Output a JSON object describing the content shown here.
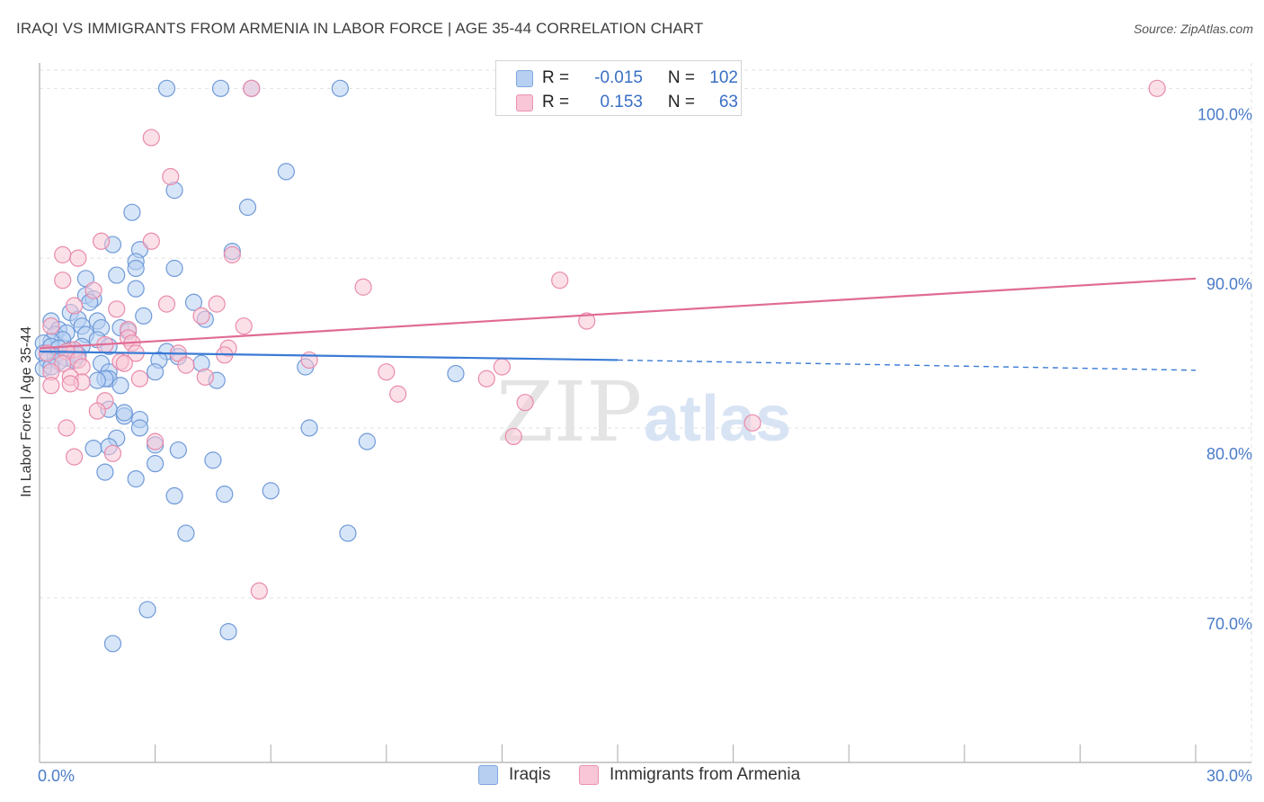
{
  "header": {
    "title": "IRAQI VS IMMIGRANTS FROM ARMENIA IN LABOR FORCE | AGE 35-44 CORRELATION CHART",
    "source": "Source: ZipAtlas.com"
  },
  "legend": {
    "r_label": "R =",
    "n_label": "N =",
    "rows": [
      {
        "r": "-0.015",
        "n": "102"
      },
      {
        "r": "0.153",
        "n": "63"
      }
    ]
  },
  "watermark": {
    "zip": "ZIP",
    "atlas": "atlas"
  },
  "colors": {
    "blue_fill": "#b7d0f2",
    "blue_stroke": "#6f9ad8",
    "blue_line": "#3a7bd5",
    "pink_fill": "#f8c6d6",
    "pink_stroke": "#e98bab",
    "pink_line": "#e06b96",
    "axis_label": "#4a7cc9",
    "grid": "#e2e2e2"
  },
  "chart_data": {
    "type": "scatter",
    "title": "IRAQI VS IMMIGRANTS FROM ARMENIA IN LABOR FORCE | AGE 35-44 CORRELATION CHART",
    "xlabel": "",
    "ylabel": "In Labor Force | Age 35-44",
    "xlim": [
      0,
      30
    ],
    "ylim": [
      60.3,
      101.5
    ],
    "x_tick_labels": [
      "0.0%",
      "30.0%"
    ],
    "y_ticks": [
      {
        "value": 70,
        "label": "70.0%"
      },
      {
        "value": 80,
        "label": "80.0%"
      },
      {
        "value": 90,
        "label": "90.0%"
      },
      {
        "value": 100,
        "label": "100.0%"
      }
    ],
    "grid": true,
    "legend_position": "top-center",
    "series": [
      {
        "name": "Iraqis",
        "color": "#6f9ad8",
        "R": -0.015,
        "N": 102,
        "trend": {
          "x_start": 0,
          "y_start": 84.5,
          "x_solid_end": 15,
          "y_solid_end": 84.0,
          "x_end": 30,
          "y_end": 83.4
        },
        "points": [
          [
            3.3,
            100.0
          ],
          [
            4.7,
            100.0
          ],
          [
            5.5,
            100.0
          ],
          [
            7.8,
            100.0
          ],
          [
            6.4,
            95.1
          ],
          [
            3.5,
            94.0
          ],
          [
            5.4,
            93.0
          ],
          [
            2.4,
            92.7
          ],
          [
            1.9,
            90.8
          ],
          [
            2.6,
            90.5
          ],
          [
            5.0,
            90.4
          ],
          [
            2.5,
            89.8
          ],
          [
            2.5,
            89.4
          ],
          [
            3.5,
            89.4
          ],
          [
            2.0,
            89.0
          ],
          [
            1.2,
            88.8
          ],
          [
            2.5,
            88.2
          ],
          [
            1.2,
            87.8
          ],
          [
            1.4,
            87.6
          ],
          [
            1.3,
            87.4
          ],
          [
            4.0,
            87.4
          ],
          [
            0.8,
            86.8
          ],
          [
            1.0,
            86.4
          ],
          [
            1.5,
            86.3
          ],
          [
            4.3,
            86.4
          ],
          [
            0.3,
            86.3
          ],
          [
            2.7,
            86.6
          ],
          [
            1.1,
            86.0
          ],
          [
            1.6,
            85.9
          ],
          [
            0.5,
            85.8
          ],
          [
            0.4,
            85.5
          ],
          [
            1.2,
            85.5
          ],
          [
            0.7,
            85.6
          ],
          [
            2.1,
            85.9
          ],
          [
            2.3,
            85.7
          ],
          [
            1.5,
            85.2
          ],
          [
            0.6,
            85.2
          ],
          [
            0.3,
            85.1
          ],
          [
            0.1,
            85.0
          ],
          [
            0.3,
            84.8
          ],
          [
            0.5,
            84.7
          ],
          [
            0.8,
            84.6
          ],
          [
            1.1,
            84.8
          ],
          [
            1.8,
            84.8
          ],
          [
            3.3,
            84.5
          ],
          [
            0.1,
            84.4
          ],
          [
            0.4,
            84.2
          ],
          [
            0.7,
            84.1
          ],
          [
            1.0,
            84.3
          ],
          [
            3.6,
            84.2
          ],
          [
            0.2,
            84.0
          ],
          [
            0.5,
            83.9
          ],
          [
            0.9,
            84.0
          ],
          [
            3.1,
            84.0
          ],
          [
            4.2,
            83.8
          ],
          [
            1.6,
            83.8
          ],
          [
            0.1,
            83.5
          ],
          [
            0.3,
            83.6
          ],
          [
            1.8,
            83.3
          ],
          [
            3.0,
            83.3
          ],
          [
            6.9,
            83.6
          ],
          [
            10.8,
            83.2
          ],
          [
            1.8,
            82.9
          ],
          [
            1.7,
            82.9
          ],
          [
            1.5,
            82.8
          ],
          [
            4.6,
            82.8
          ],
          [
            2.1,
            82.5
          ],
          [
            1.8,
            81.1
          ],
          [
            2.2,
            80.7
          ],
          [
            2.2,
            80.9
          ],
          [
            2.6,
            80.5
          ],
          [
            2.6,
            80.0
          ],
          [
            7.0,
            80.0
          ],
          [
            8.5,
            79.2
          ],
          [
            2.0,
            79.4
          ],
          [
            1.4,
            78.8
          ],
          [
            1.8,
            78.9
          ],
          [
            3.0,
            79.0
          ],
          [
            3.6,
            78.7
          ],
          [
            4.5,
            78.1
          ],
          [
            3.0,
            77.9
          ],
          [
            1.7,
            77.4
          ],
          [
            2.5,
            77.0
          ],
          [
            6.0,
            76.3
          ],
          [
            3.5,
            76.0
          ],
          [
            4.8,
            76.1
          ],
          [
            3.8,
            73.8
          ],
          [
            8.0,
            73.8
          ],
          [
            2.8,
            69.3
          ],
          [
            4.9,
            68.0
          ],
          [
            1.9,
            67.3
          ]
        ]
      },
      {
        "name": "Immigrants from Armenia",
        "color": "#e98bab",
        "R": 0.153,
        "N": 63,
        "trend": {
          "x_start": 0,
          "y_start": 84.7,
          "x_end": 30,
          "y_end": 88.8
        },
        "points": [
          [
            5.5,
            100.0
          ],
          [
            29.0,
            100.0
          ],
          [
            2.9,
            97.1
          ],
          [
            3.4,
            94.8
          ],
          [
            1.6,
            91.0
          ],
          [
            2.9,
            91.0
          ],
          [
            0.6,
            90.2
          ],
          [
            1.0,
            90.0
          ],
          [
            5.0,
            90.2
          ],
          [
            0.6,
            88.7
          ],
          [
            8.4,
            88.3
          ],
          [
            13.5,
            88.7
          ],
          [
            1.4,
            88.1
          ],
          [
            0.9,
            87.2
          ],
          [
            2.0,
            87.0
          ],
          [
            3.3,
            87.3
          ],
          [
            4.6,
            87.3
          ],
          [
            4.2,
            86.6
          ],
          [
            14.2,
            86.3
          ],
          [
            0.3,
            86.0
          ],
          [
            5.3,
            86.0
          ],
          [
            2.3,
            85.8
          ],
          [
            2.3,
            85.3
          ],
          [
            1.7,
            84.9
          ],
          [
            2.4,
            85.0
          ],
          [
            0.9,
            84.6
          ],
          [
            0.2,
            84.4
          ],
          [
            0.7,
            84.5
          ],
          [
            2.5,
            84.4
          ],
          [
            3.6,
            84.4
          ],
          [
            4.9,
            84.7
          ],
          [
            1.0,
            84.0
          ],
          [
            2.1,
            83.9
          ],
          [
            0.6,
            83.8
          ],
          [
            1.1,
            83.6
          ],
          [
            2.2,
            83.8
          ],
          [
            3.8,
            83.7
          ],
          [
            4.8,
            84.3
          ],
          [
            7.0,
            84.0
          ],
          [
            9.0,
            83.3
          ],
          [
            12.0,
            83.6
          ],
          [
            0.3,
            83.3
          ],
          [
            0.8,
            83.0
          ],
          [
            2.6,
            82.9
          ],
          [
            4.3,
            83.0
          ],
          [
            11.6,
            82.9
          ],
          [
            1.1,
            82.7
          ],
          [
            0.8,
            82.6
          ],
          [
            0.3,
            82.5
          ],
          [
            9.3,
            82.0
          ],
          [
            1.7,
            81.6
          ],
          [
            12.6,
            81.5
          ],
          [
            0.7,
            80.0
          ],
          [
            12.3,
            79.5
          ],
          [
            3.0,
            79.2
          ],
          [
            18.5,
            80.3
          ],
          [
            1.9,
            78.5
          ],
          [
            0.9,
            78.3
          ],
          [
            1.5,
            81.0
          ],
          [
            5.7,
            70.4
          ]
        ]
      }
    ]
  },
  "bottom_legend": [
    {
      "label": "Iraqis"
    },
    {
      "label": "Immigrants from Armenia"
    }
  ]
}
